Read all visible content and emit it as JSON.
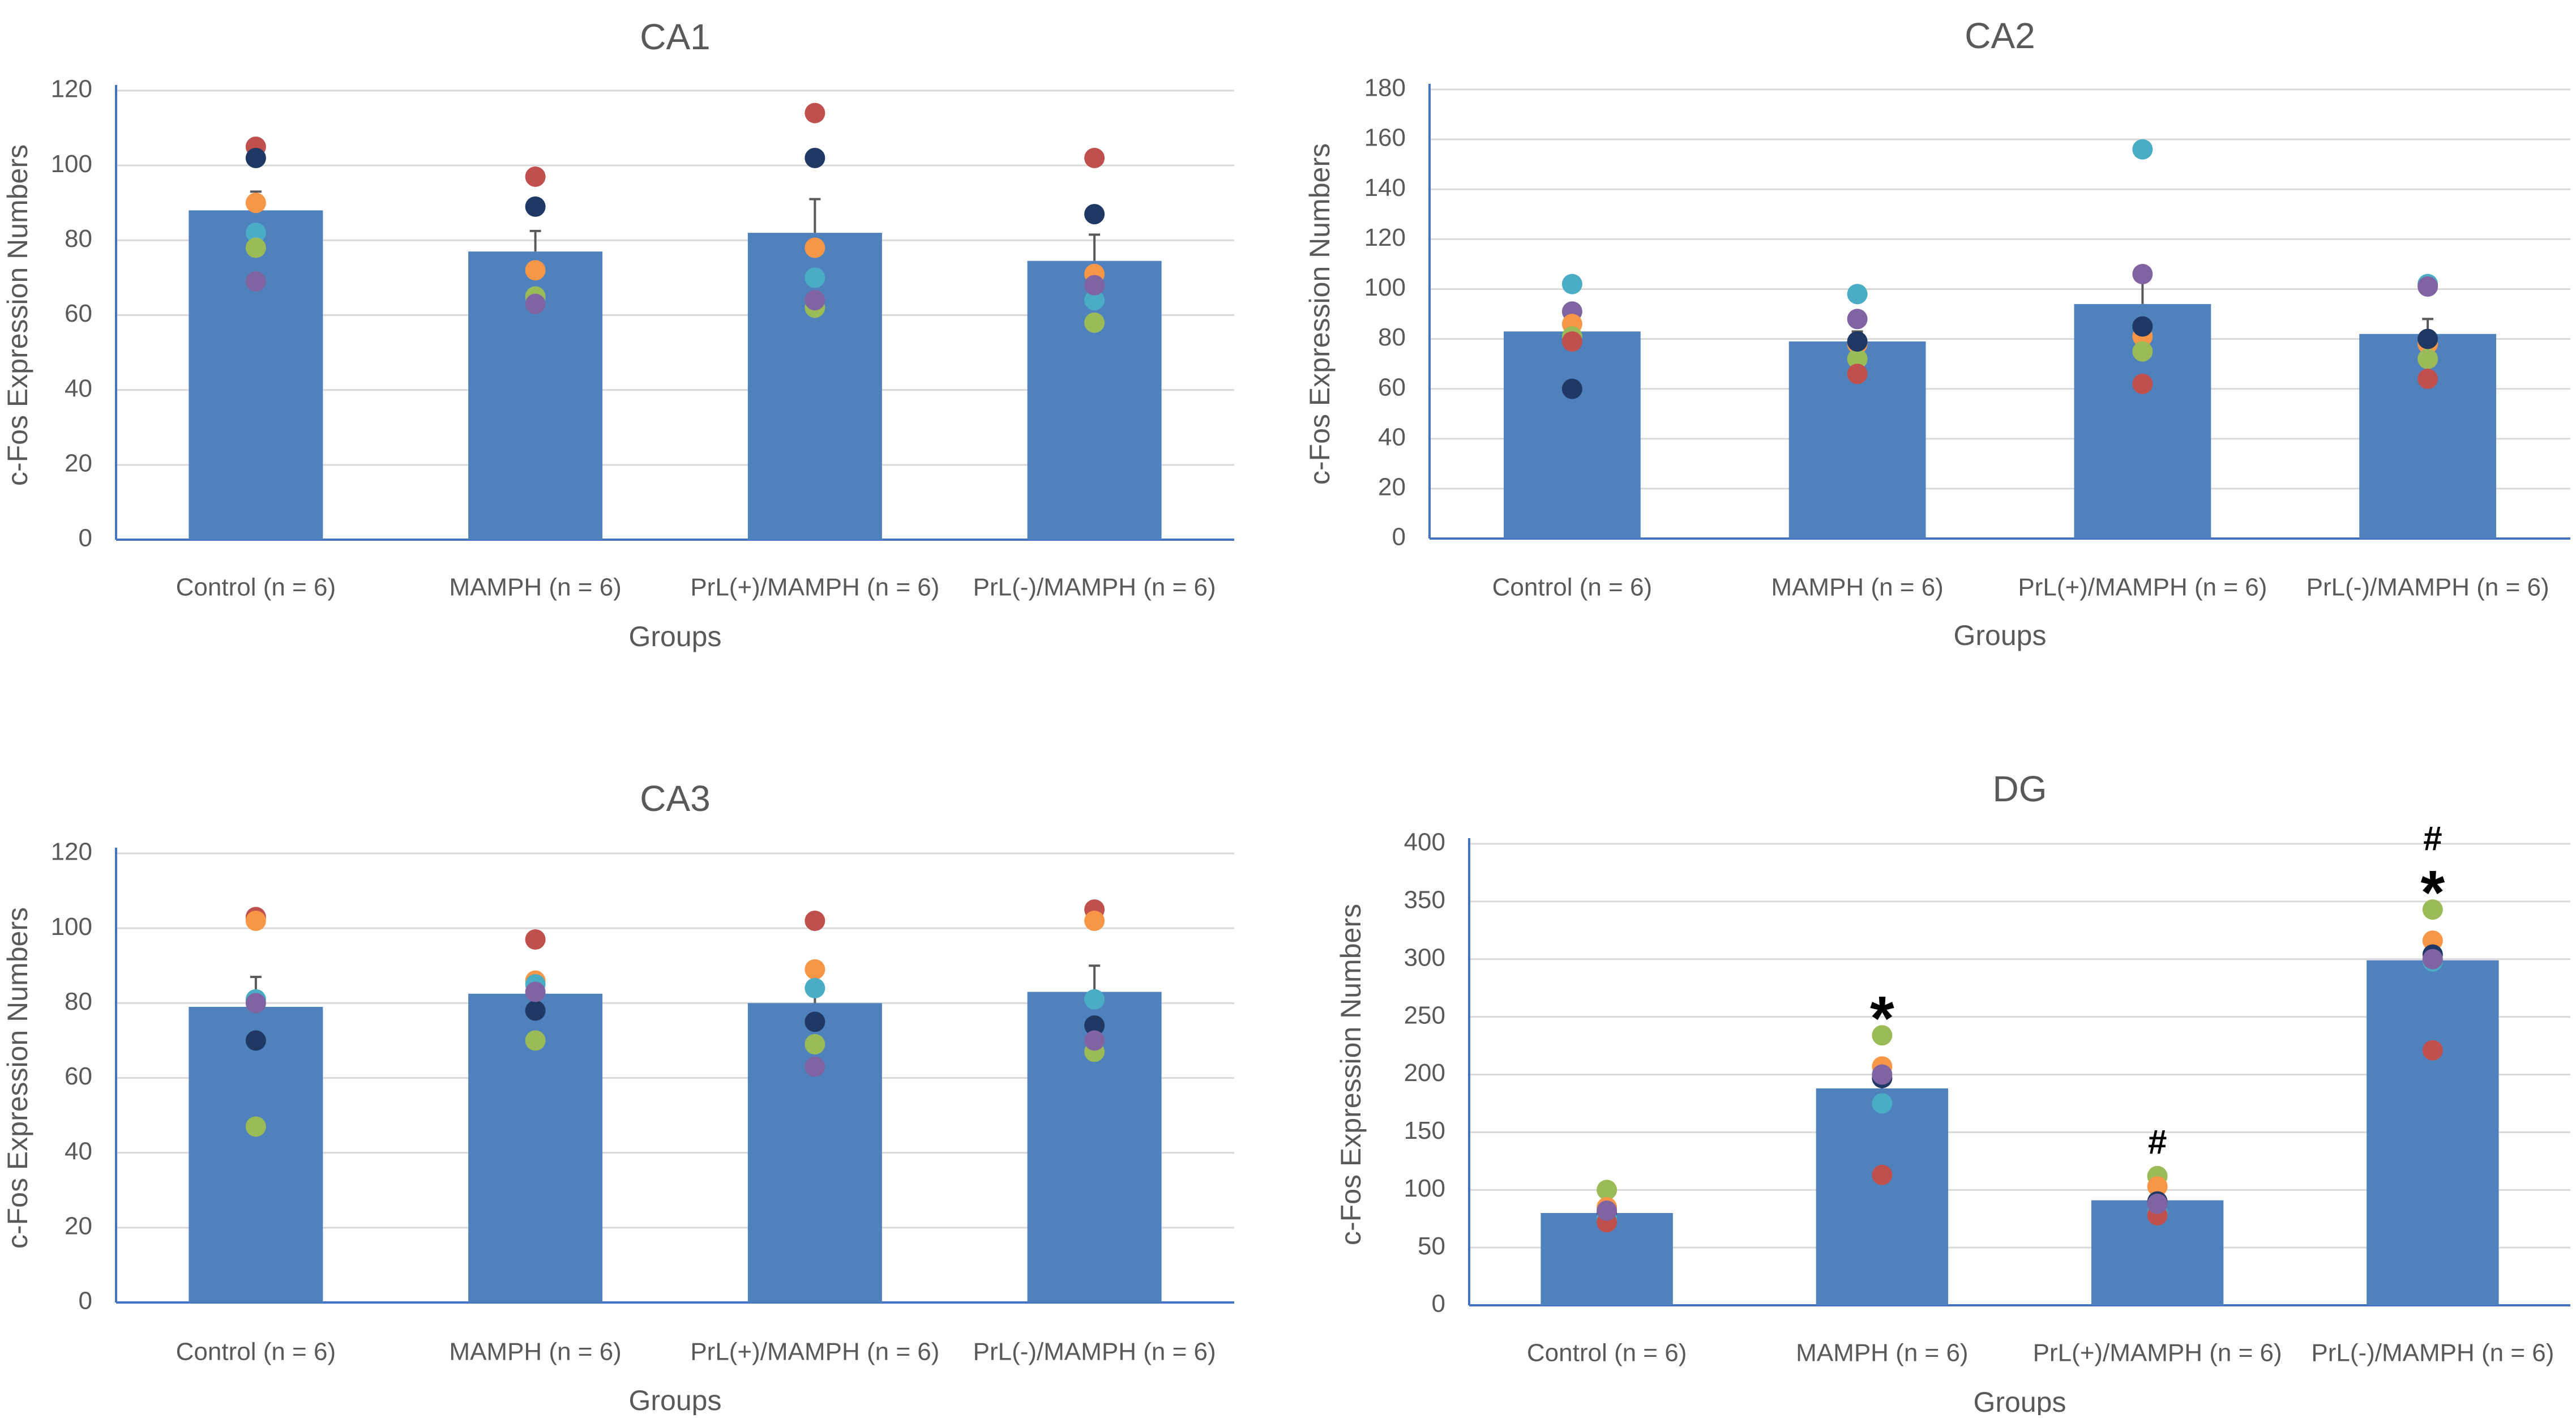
{
  "chart_data": [
    {
      "type": "bar",
      "title": "CA1",
      "xlabel": "Groups",
      "ylabel": "c-Fos Expression Numbers",
      "ylim": [
        0,
        120
      ],
      "yticks": [
        0,
        20,
        40,
        60,
        80,
        100,
        120
      ],
      "categories": [
        "Control (n = 6)",
        "MAMPH (n = 6)",
        "PrL(+)/MAMPH (n = 6)",
        "PrL(-)/MAMPH (n = 6)"
      ],
      "values": [
        88,
        77,
        82,
        74.5
      ],
      "errors": [
        5,
        5.5,
        9,
        7
      ],
      "points": [
        [
          105,
          102,
          90,
          82,
          78,
          69
        ],
        [
          97,
          89,
          72,
          64,
          65,
          63
        ],
        [
          114,
          102,
          78,
          70,
          62,
          64
        ],
        [
          102,
          87,
          71,
          64,
          58,
          68
        ]
      ],
      "point_colors": [
        "#c0504d",
        "#1f3864",
        "#f79646",
        "#4bacc6",
        "#9bbb59",
        "#8064a2"
      ],
      "annotations": [
        [],
        [],
        [],
        []
      ],
      "grid": true
    },
    {
      "type": "bar",
      "title": "CA2",
      "xlabel": "Groups",
      "ylabel": "c-Fos Expression Numbers",
      "ylim": [
        0,
        180
      ],
      "yticks": [
        0,
        20,
        40,
        60,
        80,
        100,
        120,
        140,
        160,
        180
      ],
      "categories": [
        "Control (n = 6)",
        "MAMPH (n = 6)",
        "PrL(+)/MAMPH (n = 6)",
        "PrL(-)/MAMPH (n = 6)"
      ],
      "values": [
        83,
        79,
        94,
        82
      ],
      "errors": [
        5,
        4,
        14,
        6
      ],
      "points": [
        [
          102,
          91,
          86,
          81,
          79,
          60
        ],
        [
          98,
          88,
          78,
          72,
          66,
          79
        ],
        [
          156,
          106,
          81,
          75,
          62,
          85
        ],
        [
          102,
          101,
          78,
          72,
          64,
          80
        ]
      ],
      "point_colors": [
        "#4bacc6",
        "#8064a2",
        "#f79646",
        "#9bbb59",
        "#c0504d",
        "#1f3864"
      ],
      "annotations": [
        [],
        [],
        [],
        []
      ],
      "grid": true
    },
    {
      "type": "bar",
      "title": "CA3",
      "xlabel": "Groups",
      "ylabel": "c-Fos Expression Numbers",
      "ylim": [
        0,
        120
      ],
      "yticks": [
        0,
        20,
        40,
        60,
        80,
        100,
        120
      ],
      "categories": [
        "Control (n = 6)",
        "MAMPH (n = 6)",
        "PrL(+)/MAMPH (n = 6)",
        "PrL(-)/MAMPH (n = 6)"
      ],
      "values": [
        79,
        82.5,
        80,
        83
      ],
      "errors": [
        8,
        4,
        5,
        7
      ],
      "points": [
        [
          103,
          102,
          81,
          70,
          47,
          80
        ],
        [
          97,
          86,
          85,
          78,
          70,
          83
        ],
        [
          102,
          89,
          84,
          75,
          69,
          63
        ],
        [
          105,
          102,
          81,
          74,
          67,
          70
        ]
      ],
      "point_colors": [
        "#c0504d",
        "#f79646",
        "#4bacc6",
        "#1f3864",
        "#9bbb59",
        "#8064a2"
      ],
      "annotations": [
        [],
        [],
        [],
        []
      ],
      "grid": true
    },
    {
      "type": "bar",
      "title": "DG",
      "xlabel": "Groups",
      "ylabel": "c-Fos Expression Numbers",
      "ylim": [
        0,
        400
      ],
      "yticks": [
        0,
        50,
        100,
        150,
        200,
        250,
        300,
        350,
        400
      ],
      "categories": [
        "Control (n = 6)",
        "MAMPH (n = 6)",
        "PrL(+)/MAMPH (n = 6)",
        "PrL(-)/MAMPH (n = 6)"
      ],
      "values": [
        80,
        188,
        91,
        299
      ],
      "errors": [
        3,
        17,
        6,
        5
      ],
      "points": [
        [
          100,
          85,
          80,
          76,
          72,
          82
        ],
        [
          234,
          207,
          197,
          175,
          113,
          200
        ],
        [
          112,
          103,
          90,
          80,
          78,
          88
        ],
        [
          343,
          316,
          304,
          298,
          221,
          300
        ]
      ],
      "point_colors": [
        "#9bbb59",
        "#f79646",
        "#1f3864",
        "#4bacc6",
        "#c0504d",
        "#8064a2"
      ],
      "annotations": [
        [],
        [
          "*"
        ],
        [
          "#"
        ],
        [
          "*",
          "#"
        ]
      ],
      "grid": true
    }
  ]
}
